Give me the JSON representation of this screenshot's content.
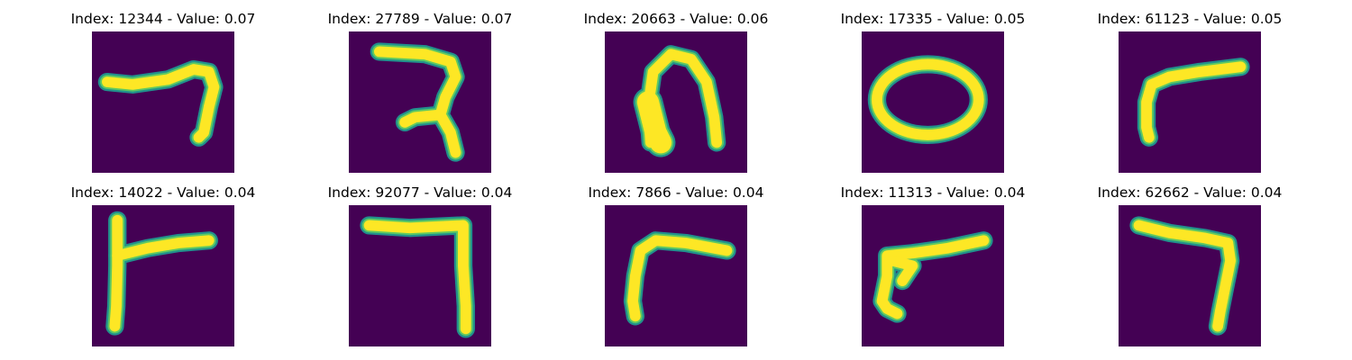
{
  "figure": {
    "panels": [
      {
        "title": "Index: 12344 - Value: 0.07",
        "index": 12344,
        "value": 0.07
      },
      {
        "title": "Index: 27789 - Value: 0.07",
        "index": 27789,
        "value": 0.07
      },
      {
        "title": "Index: 20663 - Value: 0.06",
        "index": 20663,
        "value": 0.06
      },
      {
        "title": "Index: 17335 - Value: 0.05",
        "index": 17335,
        "value": 0.05
      },
      {
        "title": "Index: 61123 - Value: 0.05",
        "index": 61123,
        "value": 0.05
      },
      {
        "title": "Index: 14022 - Value: 0.04",
        "index": 14022,
        "value": 0.04
      },
      {
        "title": "Index: 92077 - Value: 0.04",
        "index": 92077,
        "value": 0.04
      },
      {
        "title": "Index: 7866 - Value: 0.04",
        "index": 7866,
        "value": 0.04
      },
      {
        "title": "Index: 11313 - Value: 0.04",
        "index": 11313,
        "value": 0.04
      },
      {
        "title": "Index: 62662 - Value: 0.04",
        "index": 62662,
        "value": 0.04
      }
    ],
    "colors": {
      "background": "#440154",
      "stroke_edge": "#21918c",
      "stroke_mid": "#5ec962",
      "stroke_core": "#fde725"
    }
  }
}
